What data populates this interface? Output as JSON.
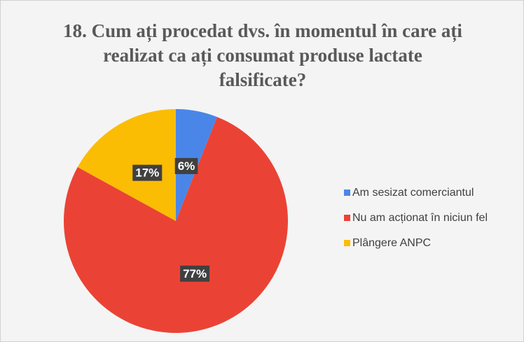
{
  "chart_data": {
    "type": "pie",
    "title": "18. Cum ați procedat dvs. în momentul în care ați realizat ca ați consumat produse lactate falsificate?",
    "categories": [
      "Am sesizat comerciantul",
      "Nu am acționat în niciun fel",
      "Plângere ANPC"
    ],
    "values": [
      6,
      77,
      17
    ],
    "value_labels": [
      "6%",
      "77%",
      "17%"
    ],
    "colors": [
      "#4a86e8",
      "#ea4335",
      "#fbbc04"
    ],
    "legend": "right"
  }
}
